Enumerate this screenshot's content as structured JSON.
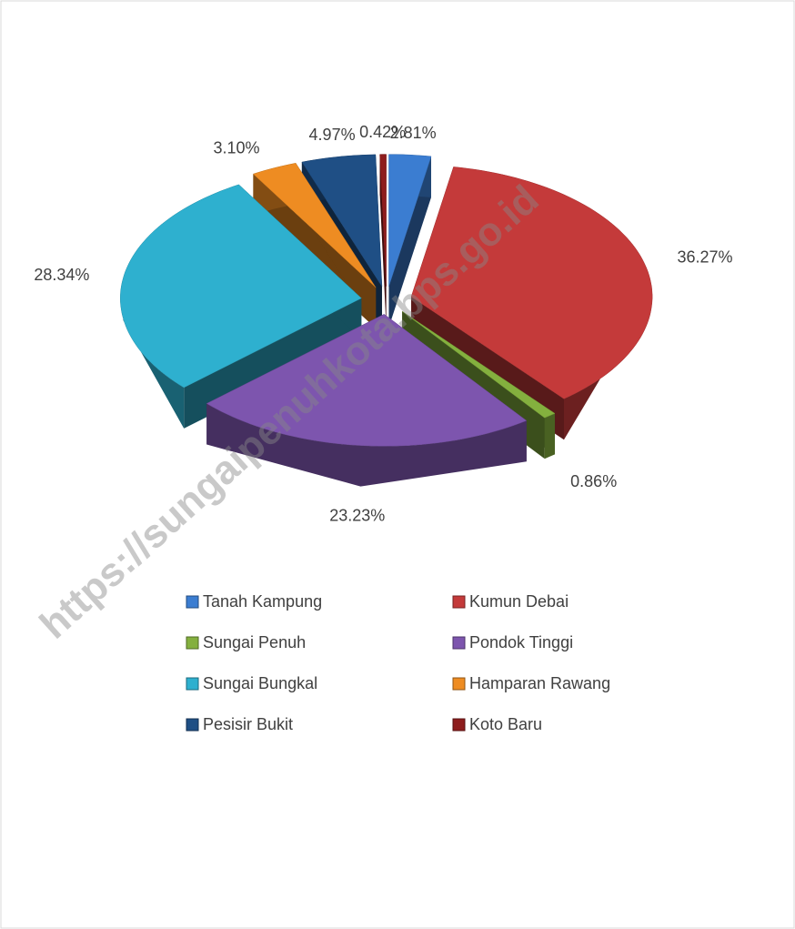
{
  "chart_data": {
    "type": "pie3d",
    "categories": [
      "Tanah Kampung",
      "Kumun Debai",
      "Sungai Penuh",
      "Pondok Tinggi",
      "Sungai Bungkal",
      "Hamparan Rawang",
      "Pesisir Bukit",
      "Koto Baru"
    ],
    "values": [
      2.81,
      36.27,
      0.86,
      23.23,
      28.34,
      3.1,
      4.97,
      0.42
    ],
    "value_labels": [
      "2.81%",
      "36.27%",
      "0.86%",
      "23.23%",
      "28.34%",
      "3.10%",
      "4.97%",
      "0.42%"
    ],
    "colors": [
      "#3b7dd1",
      "#c43a3a",
      "#84b03e",
      "#7d55ae",
      "#2eb0cf",
      "#ee8c22",
      "#1f4f85",
      "#8e1d1d"
    ],
    "legend": "bottom",
    "watermark": "https://sungaipenuhkota.bps.go.id"
  }
}
